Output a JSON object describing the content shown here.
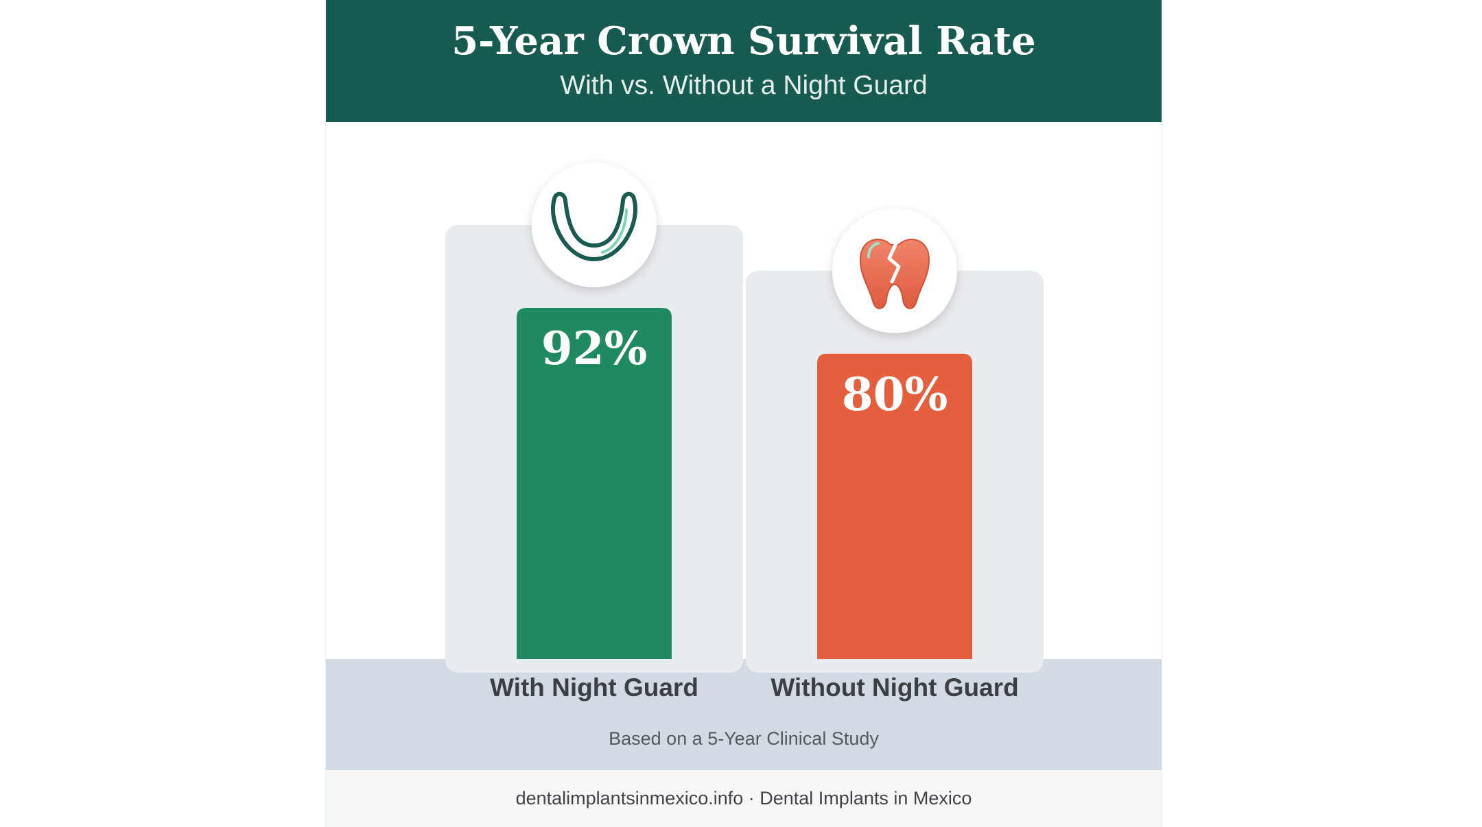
{
  "header": {
    "title": "5-Year Crown Survival Rate",
    "subtitle": "With vs. Without a Night Guard"
  },
  "chart_data": {
    "type": "bar",
    "title": "5-Year Crown Survival Rate",
    "subtitle": "With vs. Without a Night Guard",
    "categories": [
      "With Night Guard",
      "Without Night Guard"
    ],
    "values": [
      92,
      80
    ],
    "value_labels": [
      "92%",
      "80%"
    ],
    "unit": "%",
    "ylim": [
      0,
      100
    ],
    "grid": false,
    "legend": "none",
    "colors": [
      "#1f8a5f",
      "#e35f3d"
    ],
    "icons": [
      "night-guard-icon",
      "cracked-tooth-icon"
    ]
  },
  "note": "Based on a 5-Year Clinical Study",
  "footer": {
    "text": "dentalimplantsinmexico.info · Dental Implants in Mexico"
  },
  "colors": {
    "header_bg": "#175a50",
    "track_bg": "#e9ecef",
    "band_bg": "#d2dbe3",
    "footer_bg": "#f6f8f8"
  }
}
